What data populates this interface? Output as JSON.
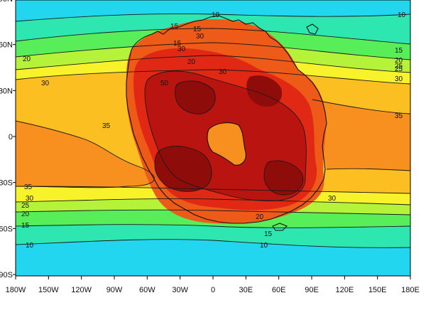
{
  "chart_data": {
    "type": "heatmap",
    "title": "",
    "xlabel": "",
    "ylabel": "",
    "x_ticks": [
      "180W",
      "150W",
      "120W",
      "90W",
      "60W",
      "30W",
      "0",
      "30E",
      "60E",
      "90E",
      "120E",
      "150E",
      "180E"
    ],
    "y_ticks": [
      "90N",
      "60N",
      "30N",
      "0",
      "30S",
      "60S",
      "90S"
    ],
    "contour_levels": [
      10,
      15,
      20,
      25,
      30,
      35,
      40,
      45,
      50
    ],
    "contour_labels": [
      "10",
      "10",
      "15",
      "15",
      "20",
      "20",
      "25",
      "30",
      "30",
      "30",
      "35",
      "35",
      "15",
      "20",
      "25",
      "30",
      "35",
      "50",
      "15",
      "30",
      "10",
      "10",
      "15",
      "15",
      "20",
      "20",
      "30",
      "30",
      "25"
    ],
    "grid": false,
    "colors": {
      "below_10": "#22d6ef",
      "10_15": "#2ee6b0",
      "15_20": "#57ee5a",
      "20_25": "#b5f23a",
      "25_30": "#f7f22a",
      "30_35": "#fbbf22",
      "35_40": "#f7901e",
      "40_45": "#ee5a18",
      "45_50": "#e02814",
      "above_50": "#b91410",
      "peak": "#8e0d0a"
    }
  }
}
